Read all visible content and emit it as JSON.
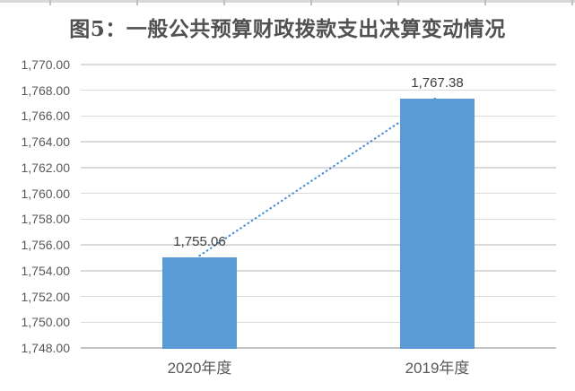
{
  "chart_data": {
    "type": "bar",
    "title": "图5：一般公共预算财政拨款支出决算变动情况",
    "categories": [
      "2020年度",
      "2019年度"
    ],
    "values": [
      1755.06,
      1767.38
    ],
    "data_labels": [
      "1,755.06",
      "1,767.38"
    ],
    "ylim": [
      1748,
      1770
    ],
    "ytick_step": 2,
    "ytick_labels": [
      "1,770.00",
      "1,768.00",
      "1,766.00",
      "1,764.00",
      "1,762.00",
      "1,760.00",
      "1,758.00",
      "1,756.00",
      "1,754.00",
      "1,752.00",
      "1,750.00",
      "1,748.00"
    ],
    "grid": true,
    "legend_position": "none",
    "bar_color": "#5b9bd5",
    "trendline": {
      "style": "dotted",
      "color": "#4a8ed8",
      "from_value": 1755.06,
      "to_value": 1767.38
    },
    "colors": {
      "top_strip": "#d9d9d9",
      "top_strip_tick": "#c0c0c0",
      "gridline": "#dadada",
      "axis_line": "#c3c3c3",
      "title_text": "#515151",
      "tick_text": "#595959",
      "data_label_text": "#404040"
    }
  }
}
